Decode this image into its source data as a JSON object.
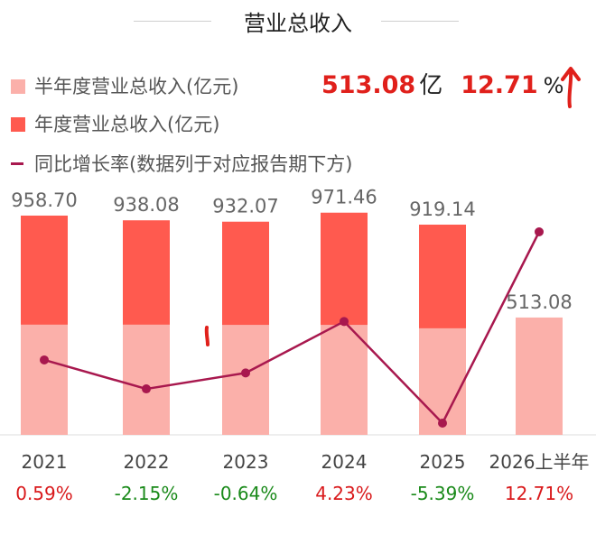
{
  "title": "营业总收入",
  "headline": {
    "value": "513.08",
    "unit": "亿",
    "growth": "12.71",
    "growth_unit": "%",
    "growth_direction": "up",
    "color": "#e0201b"
  },
  "legend": [
    {
      "label": "半年度营业总收入(亿元)",
      "color": "#fbb0aa",
      "kind": "box"
    },
    {
      "label": "年度营业总收入(亿元)",
      "color": "#ff5a4f",
      "kind": "box"
    },
    {
      "label": "同比增长率(数据列于对应报告期下方)",
      "color": "#a8184e",
      "kind": "line"
    }
  ],
  "chart_data": {
    "type": "bar",
    "categories": [
      "2021",
      "2022",
      "2023",
      "2024",
      "2025",
      "2026上半年"
    ],
    "annual_values": [
      958.7,
      938.08,
      932.07,
      971.46,
      919.14,
      null
    ],
    "half_year_values": [
      482,
      482,
      481,
      481,
      466,
      513.08
    ],
    "bar_labels": [
      "958.70",
      "938.08",
      "932.07",
      "971.46",
      "919.14",
      "513.08"
    ],
    "growth_rates": [
      0.59,
      -2.15,
      -0.64,
      4.23,
      -5.39,
      12.71
    ],
    "growth_labels": [
      "0.59%",
      "-2.15%",
      "-0.64%",
      "4.23%",
      "-5.39%",
      "12.71%"
    ],
    "ylim": [
      0,
      1000
    ],
    "growth_ylim": [
      -6.5,
      16
    ],
    "colors": {
      "annual": "#ff5a4f",
      "half_year": "#fbb0aa",
      "line": "#a8184e",
      "positive": "#d9191b",
      "negative": "#1a8a1a",
      "label": "#666666"
    }
  }
}
